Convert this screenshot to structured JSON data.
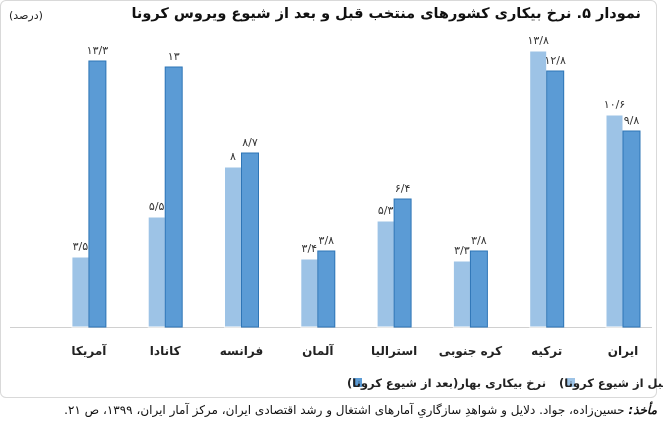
{
  "title": "نمودار ۵. نرخ بیکاری کشورهای منتخب قبل و بعد از شیوع ویروس کرونا",
  "unit": "(درصد)",
  "source": {
    "lead": "مأخذ:",
    "text": " حسین‌زاده، جواد. دلایل و شواهدِ سازگاریِ آمارهای اشتغال و رشد اقتصادی ایران، مرکز آمار ایران، ۱۳۹۹، ص ۲۱."
  },
  "colors": {
    "before": "#9dc3e6",
    "after": "#5b9bd5",
    "before_edge": "#ffffff",
    "after_edge": "#2e75b6"
  },
  "chart_data": {
    "type": "bar",
    "categories": [
      "ایران",
      "ترکیه",
      "کره جنوبی",
      "استرالیا",
      "آلمان",
      "فرانسه",
      "کانادا",
      "آمریکا"
    ],
    "series": [
      {
        "name": "نرخ بیکاری زمستان (قبل از شیوع کرونا)",
        "values": [
          10.6,
          13.8,
          3.3,
          5.3,
          3.4,
          8.0,
          5.5,
          3.5
        ],
        "labels": [
          "۱۰/۶",
          "۱۳/۸",
          "۳/۳",
          "۵/۳",
          "۳/۴",
          "۸",
          "۵/۵",
          "۳/۵"
        ]
      },
      {
        "name": "نرخ بیکاری بهار(بعد از شیوع کرونا)",
        "values": [
          9.8,
          12.8,
          3.8,
          6.4,
          3.8,
          8.7,
          13.0,
          13.3
        ],
        "labels": [
          "۹/۸",
          "۱۲/۸",
          "۳/۸",
          "۶/۴",
          "۳/۸",
          "۸/۷",
          "۱۳",
          "۱۳/۳"
        ]
      }
    ],
    "ylim": [
      0,
      15
    ],
    "grid": false,
    "legend_position": "bottom"
  }
}
